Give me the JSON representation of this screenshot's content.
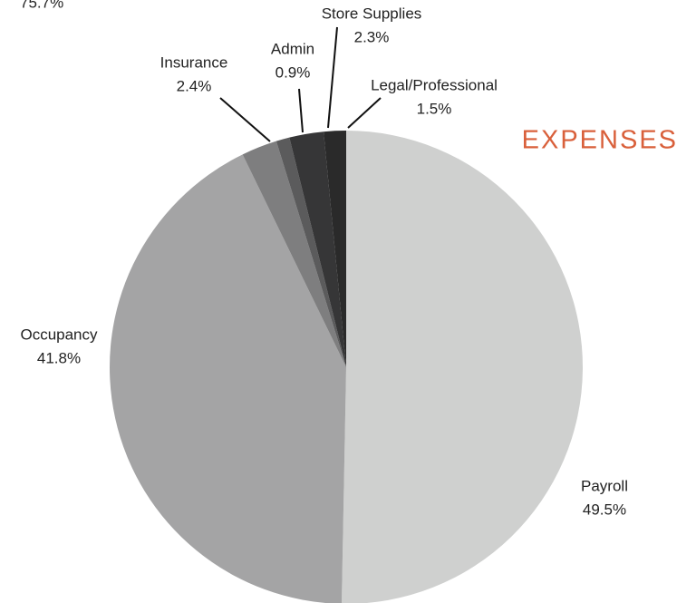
{
  "chart_data": {
    "type": "pie",
    "title": "EXPENSES",
    "cropped_label": "75.7%",
    "categories": [
      "Payroll",
      "Occupancy",
      "Insurance",
      "Admin",
      "Store Supplies",
      "Legal/Professional"
    ],
    "values": [
      49.5,
      41.8,
      2.4,
      0.9,
      2.3,
      1.5
    ],
    "value_labels": [
      "49.5%",
      "41.8%",
      "2.4%",
      "0.9%",
      "2.3%",
      "1.5%"
    ],
    "colors": [
      "#cfd0cf",
      "#a4a4a5",
      "#7e7e7f",
      "#5b5b5c",
      "#363637",
      "#2a2a2a"
    ],
    "title_color": "#d9603b"
  }
}
